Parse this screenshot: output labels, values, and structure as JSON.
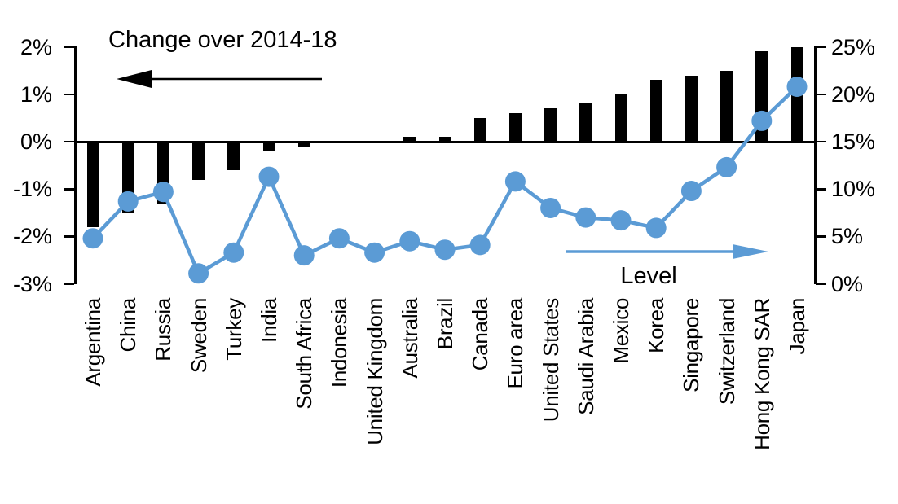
{
  "chart_data": {
    "type": "combo-bar-line",
    "categories": [
      "Argentina",
      "China",
      "Russia",
      "Sweden",
      "Turkey",
      "India",
      "South Africa",
      "Indonesia",
      "United Kingdom",
      "Australia",
      "Brazil",
      "Canada",
      "Euro area",
      "United States",
      "Saudi Arabia",
      "Mexico",
      "Korea",
      "Singapore",
      "Switzerland",
      "Hong Kong SAR",
      "Japan"
    ],
    "series": [
      {
        "name": "Change over 2014-18",
        "type": "bar",
        "axis": "left",
        "color": "#000000",
        "values": [
          -1.8,
          -1.5,
          -1.3,
          -0.8,
          -0.6,
          -0.2,
          -0.1,
          0,
          0,
          0.1,
          0.1,
          0.5,
          0.6,
          0.7,
          0.8,
          1.0,
          1.3,
          1.4,
          1.5,
          1.9,
          2.0
        ]
      },
      {
        "name": "Level",
        "type": "line",
        "axis": "right",
        "color": "#5B9BD5",
        "values": [
          4.8,
          8.7,
          9.7,
          1.1,
          3.3,
          11.3,
          3.0,
          4.8,
          3.3,
          4.5,
          3.6,
          4.1,
          10.8,
          8.0,
          7.0,
          6.7,
          5.9,
          9.8,
          12.3,
          17.2,
          20.8
        ]
      }
    ],
    "left_axis": {
      "ticks": [
        "2%",
        "1%",
        "0%",
        "-1%",
        "-2%",
        "-3%"
      ],
      "tick_values": [
        2,
        1,
        0,
        -1,
        -2,
        -3
      ],
      "min": -3,
      "max": 2
    },
    "right_axis": {
      "ticks": [
        "25%",
        "20%",
        "15%",
        "10%",
        "5%",
        "0%"
      ],
      "tick_values": [
        25,
        20,
        15,
        10,
        5,
        0
      ],
      "min": 0,
      "max": 25
    },
    "annotations": {
      "bar_series_label": "Change over 2014-18",
      "line_series_label": "Level"
    },
    "grid": false,
    "legend_position": "in-plot arrow annotations",
    "colors": {
      "bar": "#000000",
      "line": "#5B9BD5",
      "background": "#ffffff",
      "text": "#000000"
    }
  }
}
